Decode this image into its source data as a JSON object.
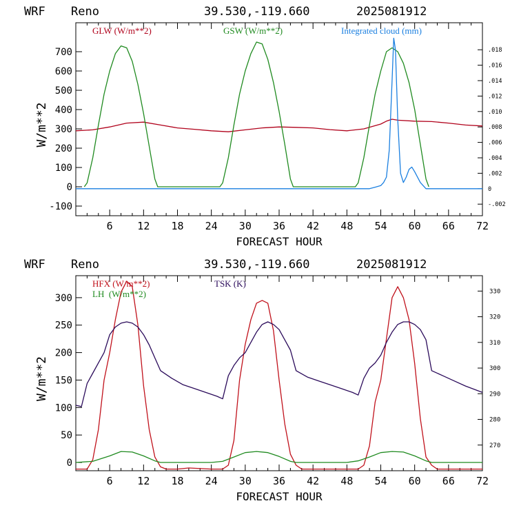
{
  "charts": [
    {
      "header": {
        "model": "WRF",
        "location": "Reno",
        "coords": "39.530,-119.660",
        "init": "2025081912"
      },
      "xlabel": "FORECAST HOUR",
      "ylabel": "W/m**2",
      "legend": [
        {
          "label": "GLW (W/m**2)",
          "color": "#b0001a"
        },
        {
          "label": "GSW (W/m**2)",
          "color": "#1f8a1f"
        },
        {
          "label": "Integrated cloud (mm)",
          "color": "#1a7fe0"
        }
      ],
      "x_ticks": [
        "6",
        "12",
        "18",
        "24",
        "30",
        "36",
        "42",
        "48",
        "54",
        "60",
        "66",
        "72"
      ],
      "y_ticks": [
        "-100",
        "0",
        "100",
        "200",
        "300",
        "400",
        "500",
        "600",
        "700"
      ],
      "y2_ticks": [
        "-.002",
        "0",
        ".002",
        ".004",
        ".006",
        ".008",
        ".010",
        ".012",
        ".014",
        ".016",
        ".018"
      ]
    },
    {
      "header": {
        "model": "WRF",
        "location": "Reno",
        "coords": "39.530,-119.660",
        "init": "2025081912"
      },
      "xlabel": "FORECAST HOUR",
      "ylabel": "W/m**2",
      "legend": [
        {
          "label": "HFX (W/m**2)",
          "color": "#c0101a"
        },
        {
          "label": "LH  (W/m**2)",
          "color": "#1f8a1f"
        },
        {
          "label": "TSK (K)",
          "color": "#2a0a5a"
        }
      ],
      "x_ticks": [
        "6",
        "12",
        "18",
        "24",
        "30",
        "36",
        "42",
        "48",
        "54",
        "60",
        "66",
        "72"
      ],
      "y_ticks": [
        "0",
        "50",
        "100",
        "150",
        "200",
        "250",
        "300"
      ],
      "y2_ticks": [
        "270",
        "280",
        "290",
        "300",
        "310",
        "320",
        "330"
      ]
    }
  ],
  "chart_data": [
    {
      "type": "line",
      "xlim": [
        0,
        72
      ],
      "ylim": [
        -150,
        850
      ],
      "y2lim": [
        -0.0035,
        0.0215
      ],
      "series": [
        {
          "name": "GLW (W/m**2)",
          "color": "#b0001a",
          "axis": "left",
          "x": [
            0,
            3,
            6,
            9,
            12,
            15,
            18,
            21,
            24,
            27,
            30,
            33,
            36,
            39,
            42,
            45,
            48,
            51,
            54,
            55,
            56,
            57,
            60,
            63,
            66,
            69,
            72
          ],
          "y": [
            290,
            295,
            310,
            330,
            335,
            320,
            305,
            298,
            290,
            285,
            295,
            305,
            310,
            308,
            305,
            296,
            290,
            300,
            325,
            340,
            350,
            345,
            340,
            338,
            330,
            320,
            315
          ]
        },
        {
          "name": "GSW (W/m**2)",
          "color": "#1f8a1f",
          "axis": "left",
          "x": [
            1.5,
            2,
            3,
            4,
            5,
            6,
            7,
            8,
            9,
            10,
            11,
            12,
            13,
            14,
            14.5,
            25.5,
            26,
            27,
            28,
            29,
            30,
            31,
            32,
            33,
            34,
            35,
            36,
            37,
            38,
            38.5,
            49.5,
            50,
            51,
            52,
            53,
            54,
            55,
            56,
            57,
            58,
            59,
            60,
            61,
            62,
            62.5
          ],
          "y": [
            0,
            20,
            150,
            320,
            480,
            600,
            690,
            730,
            720,
            650,
            530,
            380,
            210,
            40,
            0,
            0,
            20,
            150,
            320,
            480,
            600,
            690,
            750,
            740,
            660,
            540,
            390,
            220,
            40,
            0,
            0,
            20,
            150,
            320,
            480,
            600,
            700,
            720,
            700,
            640,
            540,
            400,
            220,
            40,
            0
          ]
        },
        {
          "name": "Integrated cloud (mm)",
          "color": "#1a7fe0",
          "axis": "right",
          "x": [
            0,
            50,
            52,
            53,
            54,
            54.5,
            55,
            55.5,
            56,
            56.3,
            56.6,
            57,
            57.5,
            58,
            58.5,
            59,
            59.5,
            60,
            61,
            62,
            72
          ],
          "y": [
            0,
            0,
            0,
            0.0002,
            0.0004,
            0.0008,
            0.0015,
            0.005,
            0.014,
            0.0195,
            0.018,
            0.009,
            0.002,
            0.0008,
            0.0015,
            0.0025,
            0.0028,
            0.0022,
            0.0008,
            0,
            0
          ]
        }
      ]
    },
    {
      "type": "line",
      "xlim": [
        0,
        72
      ],
      "ylim": [
        -15,
        340
      ],
      "y2lim": [
        260,
        336
      ],
      "series": [
        {
          "name": "HFX (W/m**2)",
          "color": "#c0101a",
          "axis": "left",
          "x": [
            0,
            2,
            3,
            4,
            5,
            6,
            7,
            8,
            9,
            10,
            11,
            12,
            13,
            14,
            15,
            16,
            18,
            20,
            24,
            26,
            27,
            28,
            29,
            30,
            31,
            32,
            33,
            34,
            35,
            36,
            37,
            38,
            39,
            40,
            42,
            46,
            50,
            51,
            52,
            53,
            54,
            55,
            56,
            57,
            58,
            59,
            60,
            61,
            62,
            63,
            64,
            66,
            72
          ],
          "y": [
            -12,
            -12,
            5,
            60,
            150,
            200,
            260,
            310,
            330,
            320,
            250,
            140,
            60,
            10,
            -8,
            -12,
            -12,
            -10,
            -12,
            -12,
            -5,
            40,
            150,
            215,
            260,
            290,
            295,
            290,
            240,
            150,
            70,
            15,
            -5,
            -12,
            -12,
            -12,
            -12,
            -5,
            30,
            110,
            150,
            225,
            300,
            320,
            300,
            260,
            180,
            80,
            10,
            -5,
            -12,
            -12,
            -12
          ]
        },
        {
          "name": "LH  (W/m**2)",
          "color": "#1f8a1f",
          "axis": "left",
          "x": [
            0,
            3,
            6,
            8,
            10,
            12,
            14,
            15,
            18,
            24,
            26,
            28,
            30,
            32,
            34,
            36,
            38,
            39,
            42,
            48,
            50,
            52,
            54,
            56,
            58,
            60,
            62,
            63,
            66,
            72
          ],
          "y": [
            0,
            2,
            12,
            20,
            19,
            12,
            3,
            0,
            0,
            0,
            2,
            10,
            18,
            20,
            18,
            11,
            2,
            0,
            0,
            0,
            3,
            10,
            18,
            20,
            19,
            12,
            3,
            0,
            0,
            0
          ]
        },
        {
          "name": "TSK (K)",
          "color": "#2a0a5a",
          "axis": "right",
          "x": [
            0,
            1,
            2,
            3,
            4,
            5,
            6,
            7,
            8,
            9,
            10,
            11,
            12,
            13,
            14,
            15,
            17,
            19,
            21,
            23,
            25,
            26,
            27,
            28,
            29,
            30,
            31,
            32,
            33,
            34,
            35,
            36,
            37,
            38,
            39,
            41,
            43,
            45,
            47,
            49,
            50,
            51,
            52,
            53,
            54,
            55,
            56,
            57,
            58,
            59,
            60,
            61,
            62,
            63,
            65,
            67,
            69,
            72
          ],
          "y": [
            285.5,
            285,
            294,
            298,
            302,
            306,
            313,
            316,
            317.5,
            318,
            317.5,
            316,
            313,
            309,
            304,
            299,
            296,
            293.5,
            292,
            290.5,
            289,
            288,
            297,
            301,
            304,
            306,
            310,
            314,
            317,
            318,
            317,
            315,
            311,
            307,
            299,
            296.5,
            295,
            293.5,
            292,
            290.5,
            289.5,
            296,
            300,
            302,
            305,
            310,
            314,
            317,
            318,
            318,
            317,
            315,
            311,
            299,
            297,
            295,
            293,
            290.5
          ]
        }
      ]
    }
  ]
}
